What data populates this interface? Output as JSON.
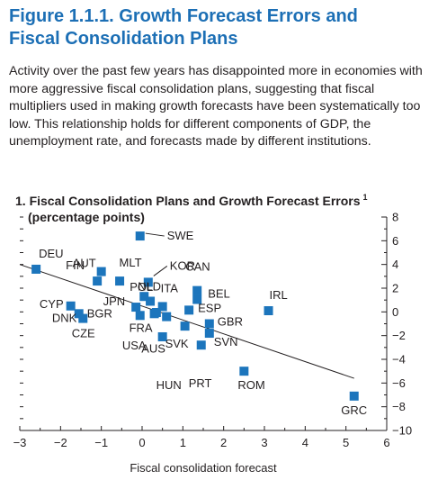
{
  "figure": {
    "title_line1": "Figure 1.1.1.  Growth Forecast Errors and",
    "title_line2": "Fiscal Consolidation Plans",
    "caption": "Activity over the past few years has disappointed more in economies with more aggressive fiscal consolidation plans, suggesting that fiscal multipliers used in making growth forecasts have been systematically too low. This relationship holds for different components of GDP, the unemployment rate, and forecasts made by different institutions."
  },
  "chart_data": {
    "type": "scatter",
    "title": "1. Fiscal Consolidation Plans and Growth Forecast Errors",
    "title_footnote": "1",
    "unit_label": "(percentage points)",
    "xlabel": "Fiscal consolidation forecast",
    "ylabel": "",
    "xlim": [
      -3,
      6
    ],
    "ylim": [
      -10,
      8
    ],
    "x_ticks": [
      -3,
      -2,
      -1,
      0,
      1,
      2,
      3,
      4,
      5,
      6
    ],
    "y_ticks": [
      -10,
      -8,
      -6,
      -4,
      -2,
      0,
      2,
      4,
      6,
      8
    ],
    "y_axis_side": "right",
    "grid": false,
    "marker_color": "#1c75bc",
    "points": [
      {
        "label": "DEU",
        "x": -2.6,
        "y": 3.6
      },
      {
        "label": "FIN",
        "x": -1.1,
        "y": 2.6
      },
      {
        "label": "AUT",
        "x": -1.0,
        "y": 3.4
      },
      {
        "label": "MLT",
        "x": -0.55,
        "y": 2.6
      },
      {
        "label": "SWE",
        "x": -0.05,
        "y": 6.4
      },
      {
        "label": "KOR",
        "x": 0.15,
        "y": 2.5
      },
      {
        "label": "POL",
        "x": 0.05,
        "y": 1.3
      },
      {
        "label": "CYP",
        "x": -1.75,
        "y": 0.5
      },
      {
        "label": "DNK",
        "x": -1.45,
        "y": -0.55
      },
      {
        "label": "BGR",
        "x": -1.55,
        "y": -0.15
      },
      {
        "label": "JPN",
        "x": -0.15,
        "y": 0.4
      },
      {
        "label": "NLD",
        "x": 0.2,
        "y": 0.9
      },
      {
        "label": "ITA",
        "x": 0.5,
        "y": 0.45
      },
      {
        "label": "CZE",
        "x": -0.05,
        "y": -0.3
      },
      {
        "label": "FRA",
        "x": 0.3,
        "y": -0.15
      },
      {
        "label": "USA",
        "x": 0.35,
        "y": -0.05
      },
      {
        "label": "AUS",
        "x": 0.6,
        "y": -0.4
      },
      {
        "label": "CAN",
        "x": 1.35,
        "y": 1.8
      },
      {
        "label": "BEL",
        "x": 1.35,
        "y": 1.05
      },
      {
        "label": "ESP",
        "x": 1.15,
        "y": 0.15
      },
      {
        "label": "SVK",
        "x": 1.05,
        "y": -1.2
      },
      {
        "label": "GBR",
        "x": 1.65,
        "y": -1.0
      },
      {
        "label": "SVN",
        "x": 1.65,
        "y": -1.8
      },
      {
        "label": "HUN",
        "x": 0.5,
        "y": -2.1
      },
      {
        "label": "IRL",
        "x": 3.1,
        "y": 0.1
      },
      {
        "label": "PRT",
        "x": 1.45,
        "y": -2.8
      },
      {
        "label": "ROM",
        "x": 2.5,
        "y": -5.0
      },
      {
        "label": "GRC",
        "x": 5.2,
        "y": -7.1
      }
    ],
    "fit_line": {
      "x": [
        -3.0,
        5.2
      ],
      "y": [
        4.0,
        -5.6
      ]
    }
  }
}
